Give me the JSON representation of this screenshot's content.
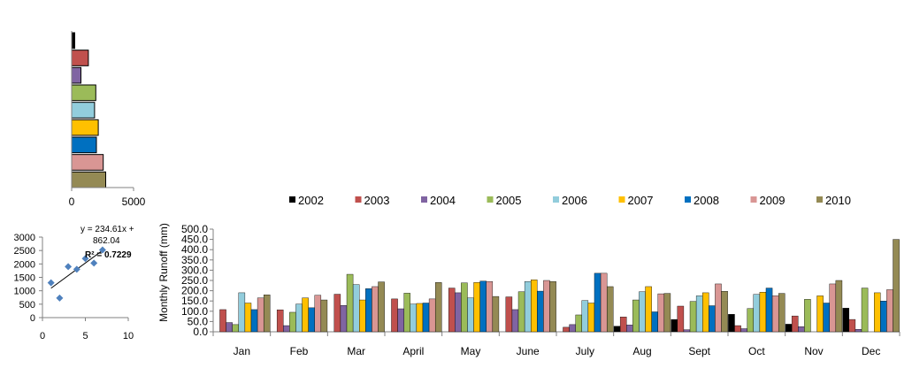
{
  "colors": {
    "2002": "#000000",
    "2003": "#c0504d",
    "2004": "#8064a2",
    "2005": "#9bbb59",
    "2006": "#92cddc",
    "2007": "#ffc000",
    "2008": "#0070c0",
    "2009": "#d99694",
    "2010": "#948a54",
    "marker": "#4f81bd",
    "axis": "#808080"
  },
  "chart_data": [
    {
      "type": "bar",
      "orientation": "horizontal",
      "categories": [
        "2002",
        "2003",
        "2004",
        "2005",
        "2006",
        "2007",
        "2008",
        "2009",
        "2010"
      ],
      "values": [
        250,
        1350,
        750,
        1950,
        1850,
        2150,
        2000,
        2550,
        2750
      ],
      "xlim": [
        0,
        5000
      ],
      "xticks": [
        "0",
        "5000"
      ],
      "grid": false,
      "legend": "none"
    },
    {
      "type": "scatter",
      "points": [
        [
          1,
          1300
        ],
        [
          2,
          730
        ],
        [
          3,
          1900
        ],
        [
          4,
          1800
        ],
        [
          5,
          2200
        ],
        [
          6,
          2030
        ],
        [
          7,
          2520
        ]
      ],
      "trendline": {
        "slope": 234.61,
        "intercept": 862.04
      },
      "equation_lines": [
        "y = 234.61x +",
        "862.04"
      ],
      "r2_label": "R² = 0.7229",
      "xlim": [
        0,
        10
      ],
      "ylim": [
        0,
        3000
      ],
      "xticks": [
        "0",
        "5",
        "10"
      ],
      "yticks": [
        "0",
        "500",
        "1000",
        "1500",
        "2000",
        "2500",
        "3000"
      ],
      "grid": false
    },
    {
      "type": "bar",
      "categories": [
        "Jan",
        "Feb",
        "Mar",
        "April",
        "May",
        "June",
        "July",
        "Aug",
        "Sept",
        "Oct",
        "Nov",
        "Dec"
      ],
      "series": [
        {
          "name": "2002",
          "values": [
            0,
            0,
            0,
            0,
            0,
            0,
            0,
            27,
            60,
            85,
            37,
            115
          ]
        },
        {
          "name": "2003",
          "values": [
            108,
            107,
            183,
            160,
            213,
            170,
            22,
            72,
            125,
            30,
            77,
            60
          ]
        },
        {
          "name": "2004",
          "values": [
            45,
            30,
            128,
            112,
            190,
            108,
            35,
            33,
            10,
            15,
            25,
            12
          ]
        },
        {
          "name": "2005",
          "values": [
            35,
            95,
            280,
            188,
            238,
            195,
            82,
            155,
            148,
            113,
            158,
            213
          ]
        },
        {
          "name": "2006",
          "values": [
            190,
            135,
            230,
            135,
            165,
            245,
            152,
            195,
            175,
            182,
            0,
            0
          ]
        },
        {
          "name": "2007",
          "values": [
            140,
            165,
            155,
            138,
            240,
            253,
            140,
            220,
            190,
            193,
            175,
            190
          ]
        },
        {
          "name": "2008",
          "values": [
            108,
            117,
            210,
            140,
            247,
            198,
            285,
            97,
            127,
            213,
            140,
            150
          ]
        },
        {
          "name": "2009",
          "values": [
            165,
            178,
            220,
            160,
            245,
            250,
            285,
            185,
            233,
            175,
            233,
            205
          ]
        },
        {
          "name": "2010",
          "values": [
            180,
            155,
            243,
            240,
            172,
            245,
            220,
            187,
            197,
            187,
            250,
            450
          ]
        }
      ],
      "ylabel": "Monthly  Runoff (mm)",
      "ylim": [
        0,
        500
      ],
      "yticks": [
        "0.0",
        "50.0",
        "100.0",
        "150.0",
        "200.0",
        "250.0",
        "300.0",
        "350.0",
        "400.0",
        "450.0",
        "500.0"
      ],
      "legend": "top",
      "grid": false
    }
  ]
}
